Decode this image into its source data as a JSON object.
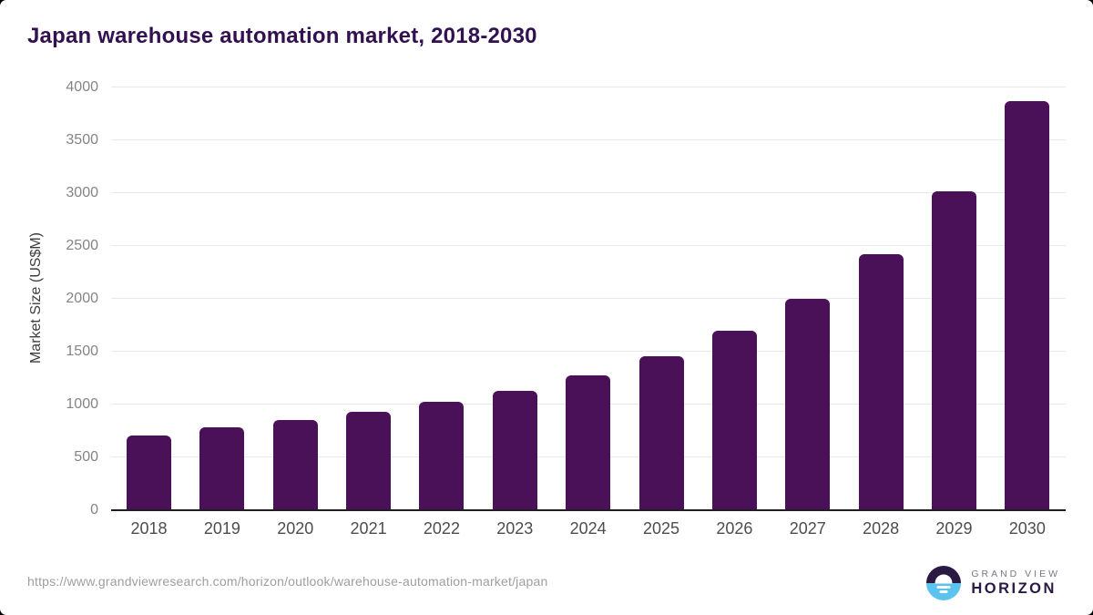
{
  "chart_data": {
    "type": "bar",
    "title": "Japan warehouse automation market, 2018-2030",
    "xlabel": "",
    "ylabel": "Market Size (US$M)",
    "categories": [
      "2018",
      "2019",
      "2020",
      "2021",
      "2022",
      "2023",
      "2024",
      "2025",
      "2026",
      "2027",
      "2028",
      "2029",
      "2030"
    ],
    "values": [
      710,
      785,
      850,
      930,
      1025,
      1130,
      1275,
      1460,
      1695,
      2000,
      2425,
      3015,
      3870
    ],
    "ylim": [
      0,
      4000
    ],
    "ytick_step": 500,
    "yticks": [
      0,
      500,
      1000,
      1500,
      2000,
      2500,
      3000,
      3500,
      4000
    ],
    "grid": true,
    "legend": false,
    "bar_corner_radius": "rounded-top"
  },
  "style": {
    "bar": "#4a1158",
    "title": "#33104f",
    "grid": "#e9e9e9",
    "axis_line": "#1f1f1f",
    "y_tick": "#848484",
    "x_tick": "#4d4d4d",
    "axis_title": "#3d3d3d",
    "source": "#9e9e9e",
    "logo_dark": "#2a1a43",
    "logo_blue": "#5cc3ef",
    "logo_gray": "#7c7685",
    "card_background": "#ffffff",
    "page_background": "#000000"
  },
  "footer": {
    "source_url": "https://www.grandviewresearch.com/horizon/outlook/warehouse-automation-market/japan",
    "logo": {
      "top": "GRAND VIEW",
      "bottom": "HORIZON"
    }
  }
}
